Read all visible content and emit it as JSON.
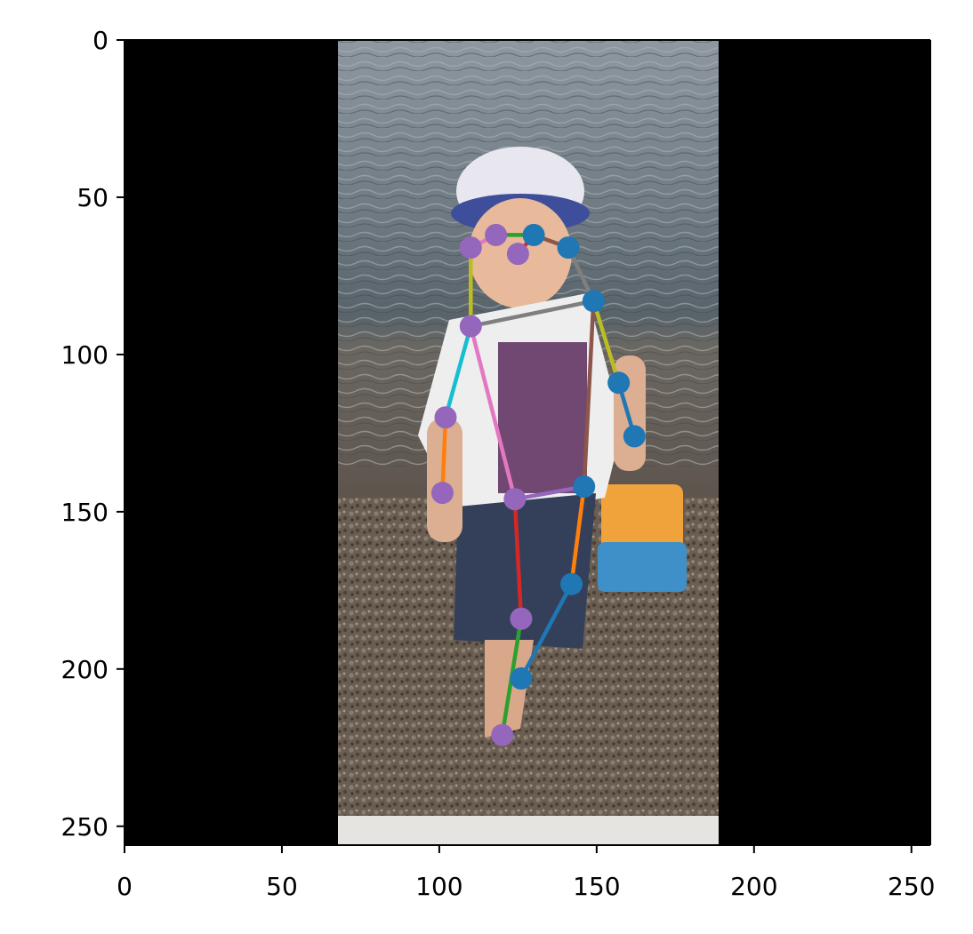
{
  "chart_data": {
    "type": "scatter",
    "title": "",
    "xlabel": "",
    "ylabel": "",
    "xlim": [
      0,
      256
    ],
    "ylim": [
      256,
      0
    ],
    "y_axis_inverted": true,
    "grid": false,
    "legend": "none",
    "background_image": "photo of a toddler in a sun hat standing on a rocky shoreline, padded with black on left and right",
    "xticks": [
      0,
      50,
      100,
      150,
      200,
      250
    ],
    "yticks": [
      0,
      50,
      100,
      150,
      200,
      250
    ],
    "xtick_labels": [
      "0",
      "50",
      "100",
      "150",
      "200",
      "250"
    ],
    "ytick_labels": [
      "0",
      "50",
      "100",
      "150",
      "200",
      "250"
    ],
    "keypoints": [
      {
        "name": "nose",
        "x": 125,
        "y": 68,
        "side": "left"
      },
      {
        "name": "left_eye",
        "x": 118,
        "y": 62,
        "side": "left"
      },
      {
        "name": "right_eye",
        "x": 130,
        "y": 62,
        "side": "right"
      },
      {
        "name": "left_ear",
        "x": 110,
        "y": 66,
        "side": "left"
      },
      {
        "name": "right_ear",
        "x": 141,
        "y": 66,
        "side": "right"
      },
      {
        "name": "left_shoulder",
        "x": 110,
        "y": 91,
        "side": "left"
      },
      {
        "name": "right_shoulder",
        "x": 149,
        "y": 83,
        "side": "right"
      },
      {
        "name": "left_elbow",
        "x": 102,
        "y": 120,
        "side": "left"
      },
      {
        "name": "right_elbow",
        "x": 157,
        "y": 109,
        "side": "right"
      },
      {
        "name": "left_wrist",
        "x": 101,
        "y": 144,
        "side": "left"
      },
      {
        "name": "right_wrist",
        "x": 162,
        "y": 126,
        "side": "right"
      },
      {
        "name": "left_hip",
        "x": 124,
        "y": 146,
        "side": "left"
      },
      {
        "name": "right_hip",
        "x": 146,
        "y": 142,
        "side": "right"
      },
      {
        "name": "left_knee",
        "x": 126,
        "y": 184,
        "side": "left"
      },
      {
        "name": "right_knee",
        "x": 142,
        "y": 173,
        "side": "right"
      },
      {
        "name": "left_ankle",
        "x": 120,
        "y": 221,
        "side": "left"
      },
      {
        "name": "right_ankle",
        "x": 126,
        "y": 203,
        "side": "right"
      }
    ],
    "skeleton": [
      {
        "a": "nose",
        "b": "right_eye",
        "color": "#d62728"
      },
      {
        "a": "left_eye",
        "b": "right_eye",
        "color": "#2ca02c"
      },
      {
        "a": "left_eye",
        "b": "left_ear",
        "color": "#e377c2"
      },
      {
        "a": "right_eye",
        "b": "right_ear",
        "color": "#8c564b"
      },
      {
        "a": "right_ear",
        "b": "right_shoulder",
        "color": "#7f7f7f"
      },
      {
        "a": "left_ear",
        "b": "left_shoulder",
        "color": "#bcbd22"
      },
      {
        "a": "left_shoulder",
        "b": "right_shoulder",
        "color": "#7f7f7f"
      },
      {
        "a": "right_shoulder",
        "b": "right_elbow",
        "color": "#bcbd22"
      },
      {
        "a": "right_elbow",
        "b": "right_wrist",
        "color": "#1f77b4"
      },
      {
        "a": "left_shoulder",
        "b": "left_elbow",
        "color": "#17becf"
      },
      {
        "a": "left_elbow",
        "b": "left_wrist",
        "color": "#ff7f0e"
      },
      {
        "a": "right_shoulder",
        "b": "right_hip",
        "color": "#8c564b"
      },
      {
        "a": "left_shoulder",
        "b": "left_hip",
        "color": "#e377c2"
      },
      {
        "a": "left_hip",
        "b": "right_hip",
        "color": "#9467bd"
      },
      {
        "a": "right_hip",
        "b": "right_knee",
        "color": "#ff7f0e"
      },
      {
        "a": "right_knee",
        "b": "right_ankle",
        "color": "#1f77b4"
      },
      {
        "a": "left_hip",
        "b": "left_knee",
        "color": "#d62728"
      },
      {
        "a": "left_knee",
        "b": "left_ankle",
        "color": "#2ca02c"
      }
    ],
    "point_colors": {
      "left": "#9467bd",
      "right": "#1f77b4"
    }
  }
}
